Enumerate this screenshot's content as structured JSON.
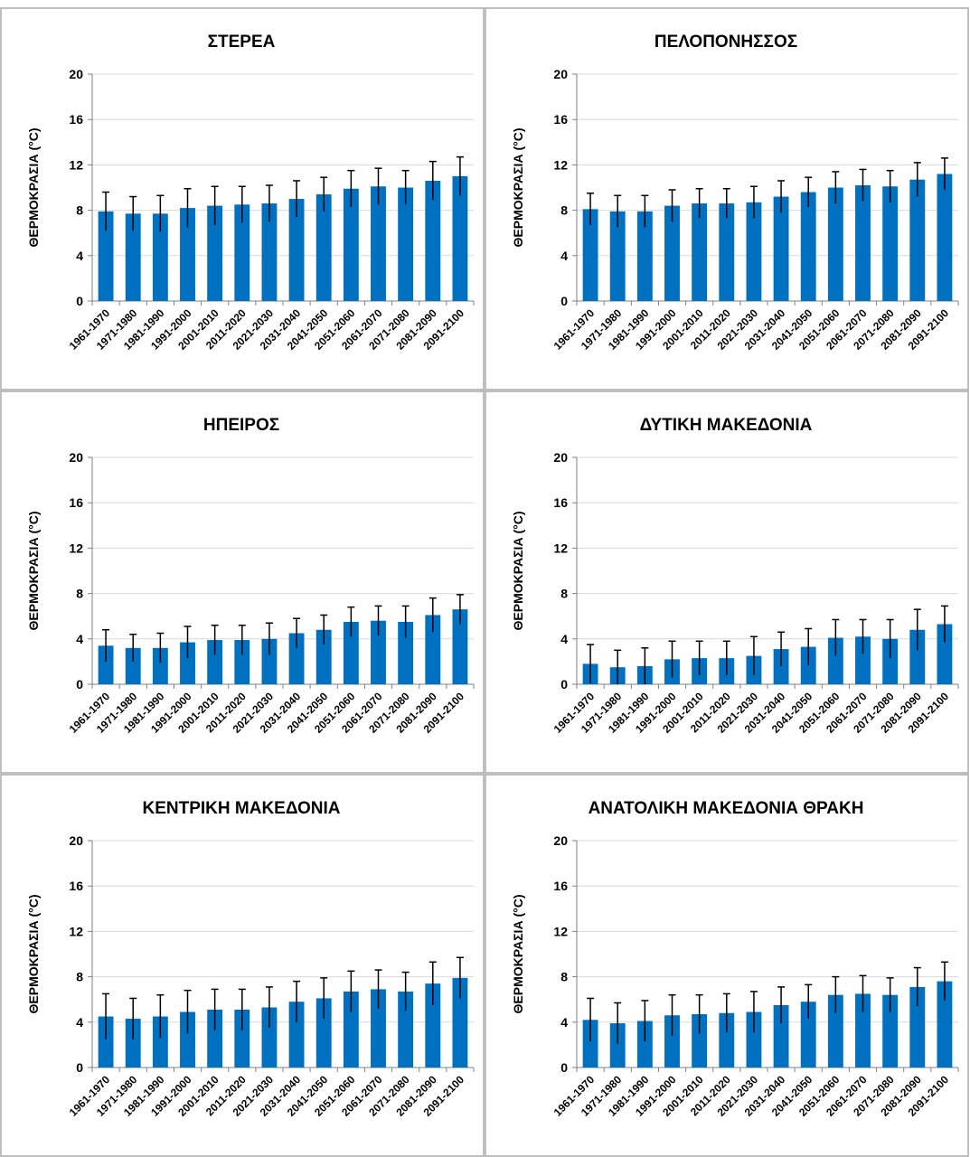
{
  "colors": {
    "bar": "#0070c0",
    "grid": "#d9d9d9",
    "axis": "#808080",
    "text": "#000000"
  },
  "chart_data": [
    {
      "type": "bar",
      "title": "ΣΤΕΡΕΑ",
      "xlabel": "",
      "ylabel": "ΘΕΡΜΟΚΡΑΣΙΑ (°C)",
      "ylim": [
        0,
        20
      ],
      "yticks": [
        0,
        4,
        8,
        12,
        16,
        20
      ],
      "grid": true,
      "categories": [
        "1961-1970",
        "1971-1980",
        "1981-1990",
        "1991-2000",
        "2001-2010",
        "2011-2020",
        "2021-2030",
        "2031-2040",
        "2041-2050",
        "2051-2060",
        "2061-2070",
        "2071-2080",
        "2081-2090",
        "2091-2100"
      ],
      "values": [
        7.9,
        7.7,
        7.7,
        8.2,
        8.4,
        8.5,
        8.6,
        9.0,
        9.4,
        9.9,
        10.1,
        10.0,
        10.6,
        11.0
      ],
      "error": [
        1.7,
        1.5,
        1.6,
        1.7,
        1.7,
        1.6,
        1.6,
        1.6,
        1.5,
        1.6,
        1.6,
        1.5,
        1.7,
        1.7
      ]
    },
    {
      "type": "bar",
      "title": "ΠΕΛΟΠΟΝΗΣΣΟΣ",
      "xlabel": "",
      "ylabel": "ΘΕΡΜΟΚΡΑΣΙΑ (°C)",
      "ylim": [
        0,
        20
      ],
      "yticks": [
        0,
        4,
        8,
        12,
        16,
        20
      ],
      "grid": true,
      "categories": [
        "1961-1970",
        "1971-1980",
        "1981-1990",
        "1991-2000",
        "2001-2010",
        "2011-2020",
        "2021-2030",
        "2031-2040",
        "2041-2050",
        "2051-2060",
        "2061-2070",
        "2071-2080",
        "2081-2090",
        "2091-2100"
      ],
      "values": [
        8.1,
        7.9,
        7.9,
        8.4,
        8.6,
        8.6,
        8.7,
        9.2,
        9.6,
        10.0,
        10.2,
        10.1,
        10.7,
        11.2
      ],
      "error": [
        1.4,
        1.4,
        1.4,
        1.4,
        1.3,
        1.3,
        1.4,
        1.4,
        1.3,
        1.4,
        1.4,
        1.4,
        1.5,
        1.4
      ]
    },
    {
      "type": "bar",
      "title": "ΗΠΕΙΡΟΣ",
      "xlabel": "",
      "ylabel": "ΘΕΡΜΟΚΡΑΣΙΑ (°C)",
      "ylim": [
        0,
        20
      ],
      "yticks": [
        0,
        4,
        8,
        12,
        16,
        20
      ],
      "grid": true,
      "categories": [
        "1961-1970",
        "1971-1980",
        "1981-1990",
        "1991-2000",
        "2001-2010",
        "2011-2020",
        "2021-2030",
        "2031-2040",
        "2041-2050",
        "2051-2060",
        "2061-2070",
        "2071-2080",
        "2081-2090",
        "2091-2100"
      ],
      "values": [
        3.4,
        3.2,
        3.2,
        3.7,
        3.9,
        3.9,
        4.0,
        4.5,
        4.8,
        5.5,
        5.6,
        5.5,
        6.1,
        6.6
      ],
      "error": [
        1.4,
        1.2,
        1.3,
        1.4,
        1.3,
        1.3,
        1.4,
        1.3,
        1.3,
        1.3,
        1.3,
        1.4,
        1.5,
        1.3
      ]
    },
    {
      "type": "bar",
      "title": "ΔΥΤΙΚΗ ΜΑΚΕΔΟΝΙΑ",
      "xlabel": "",
      "ylabel": "ΘΕΡΜΟΚΡΑΣΙΑ (°C)",
      "ylim": [
        0,
        20
      ],
      "yticks": [
        0,
        4,
        8,
        12,
        16,
        20
      ],
      "grid": true,
      "categories": [
        "1961-1970",
        "1971-1980",
        "1981-1990",
        "1991-2000",
        "2001-2010",
        "2011-2020",
        "2021-2030",
        "2031-2040",
        "2041-2050",
        "2051-2060",
        "2061-2070",
        "2071-2080",
        "2081-2090",
        "2091-2100"
      ],
      "values": [
        1.8,
        1.5,
        1.6,
        2.2,
        2.3,
        2.3,
        2.5,
        3.1,
        3.3,
        4.1,
        4.2,
        4.0,
        4.8,
        5.3
      ],
      "error": [
        1.7,
        1.5,
        1.6,
        1.6,
        1.5,
        1.5,
        1.7,
        1.5,
        1.6,
        1.6,
        1.5,
        1.7,
        1.8,
        1.6
      ]
    },
    {
      "type": "bar",
      "title": "ΚΕΝΤΡΙΚΗ ΜΑΚΕΔΟΝΙΑ",
      "xlabel": "",
      "ylabel": "ΘΕΡΜΟΚΡΑΣΙΑ (°C)",
      "ylim": [
        0,
        20
      ],
      "yticks": [
        0,
        4,
        8,
        12,
        16,
        20
      ],
      "grid": true,
      "categories": [
        "1961-1970",
        "1971-1980",
        "1981-1990",
        "1991-2000",
        "2001-2010",
        "2011-2020",
        "2021-2030",
        "2031-2040",
        "2041-2050",
        "2051-2060",
        "2061-2070",
        "2071-2080",
        "2081-2090",
        "2091-2100"
      ],
      "values": [
        4.5,
        4.3,
        4.5,
        4.9,
        5.1,
        5.1,
        5.3,
        5.8,
        6.1,
        6.7,
        6.9,
        6.7,
        7.4,
        7.9
      ],
      "error": [
        2.0,
        1.8,
        1.9,
        1.9,
        1.8,
        1.8,
        1.8,
        1.8,
        1.8,
        1.8,
        1.7,
        1.7,
        1.9,
        1.8
      ]
    },
    {
      "type": "bar",
      "title": "ΑΝΑΤΟΛΙΚΗ ΜΑΚΕΔΟΝΙΑ ΘΡΑΚΗ",
      "xlabel": "",
      "ylabel": "ΘΕΡΜΟΚΡΑΣΙΑ (°C)",
      "ylim": [
        0,
        20
      ],
      "yticks": [
        0,
        4,
        8,
        12,
        16,
        20
      ],
      "grid": true,
      "categories": [
        "1961-1970",
        "1971-1980",
        "1981-1990",
        "1991-2000",
        "2001-2010",
        "2011-2020",
        "2021-2030",
        "2031-2040",
        "2041-2050",
        "2051-2060",
        "2061-2070",
        "2071-2080",
        "2081-2090",
        "2091-2100"
      ],
      "values": [
        4.2,
        3.9,
        4.1,
        4.6,
        4.7,
        4.8,
        4.9,
        5.5,
        5.8,
        6.4,
        6.5,
        6.4,
        7.1,
        7.6
      ],
      "error": [
        1.9,
        1.8,
        1.8,
        1.8,
        1.7,
        1.7,
        1.8,
        1.6,
        1.5,
        1.6,
        1.6,
        1.5,
        1.7,
        1.7
      ]
    }
  ]
}
